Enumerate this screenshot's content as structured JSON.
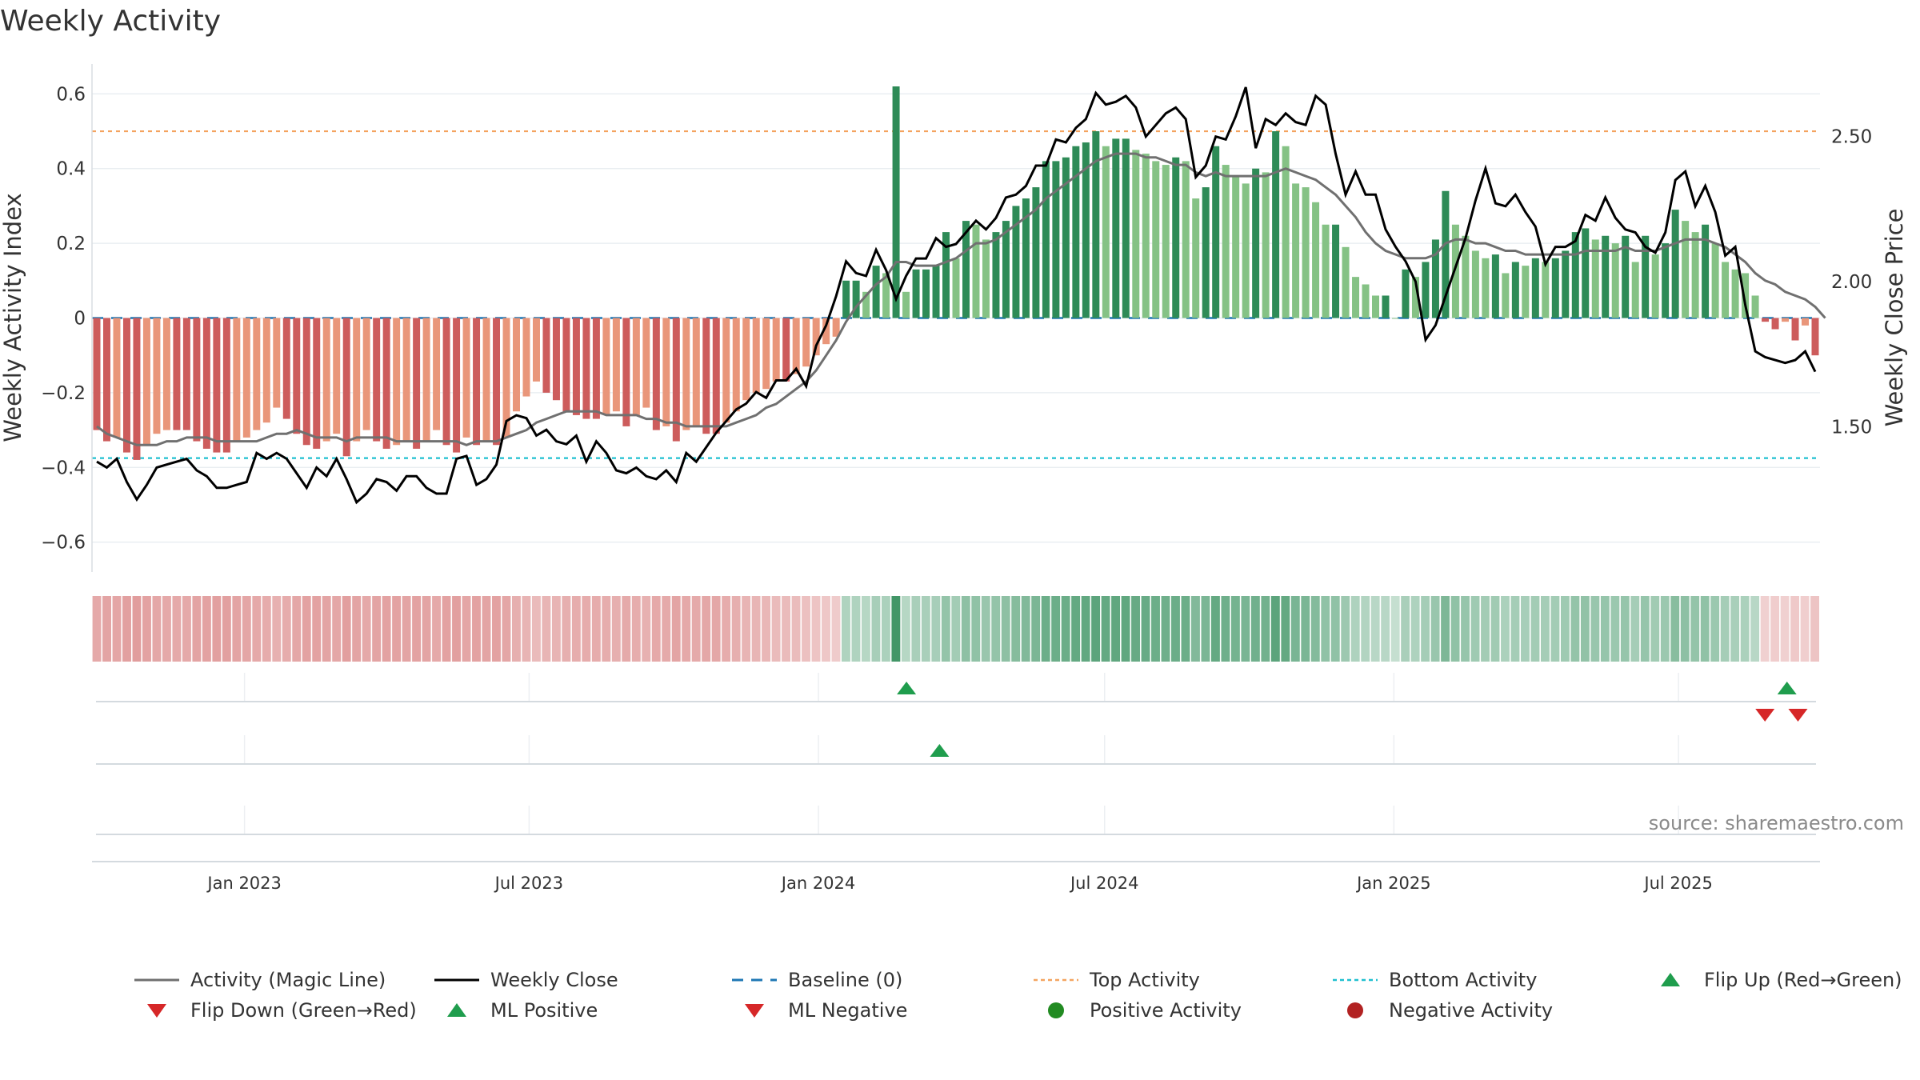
{
  "title": "Weekly Activity",
  "source": "source: sharemaestro.com",
  "colors": {
    "pos_dark": "#2e8b57",
    "pos_light": "#85c285",
    "neg_dark": "#cd5c5c",
    "neg_light": "#e9967a",
    "magic_line": "#707070",
    "close_line": "#000000",
    "baseline": "#1f77b4",
    "top": "#f4a460",
    "bottom": "#20c0d0",
    "flip_up": "#1f9d4d",
    "flip_down": "#d62728",
    "pos_dot": "#228b22",
    "neg_dot": "#b22222"
  },
  "chart_data": {
    "type": "bar",
    "title": "Weekly Activity",
    "ylabel_left": "Weekly Activity Index",
    "ylabel_right": "Weekly Close Price",
    "ylim_left": [
      -0.68,
      0.68
    ],
    "ylim_right": [
      1.0,
      2.75
    ],
    "yticks_left": [
      {
        "v": 0.6,
        "label": "0.6"
      },
      {
        "v": 0.4,
        "label": "0.4"
      },
      {
        "v": 0.2,
        "label": "0.2"
      },
      {
        "v": 0,
        "label": "0"
      },
      {
        "v": -0.2,
        "label": "−0.2"
      },
      {
        "v": -0.4,
        "label": "−0.4"
      },
      {
        "v": -0.6,
        "label": "−0.6"
      }
    ],
    "yticks_right": [
      {
        "v": 2.5,
        "label": "2.50"
      },
      {
        "v": 2.0,
        "label": "2.00"
      },
      {
        "v": 1.5,
        "label": "1.50"
      }
    ],
    "x_start": "2022-09-26",
    "x_end": "2025-09-29",
    "xticks": [
      {
        "date": "2023-01-01",
        "label": "Jan 2023"
      },
      {
        "date": "2023-07-01",
        "label": "Jul 2023"
      },
      {
        "date": "2024-01-01",
        "label": "Jan 2024"
      },
      {
        "date": "2024-07-01",
        "label": "Jul 2024"
      },
      {
        "date": "2025-01-01",
        "label": "Jan 2025"
      },
      {
        "date": "2025-07-01",
        "label": "Jul 2025"
      }
    ],
    "reference_lines": {
      "baseline": 0,
      "top_activity": 0.5,
      "bottom_activity": -0.375
    },
    "series": [
      {
        "name": "Weekly Activity Index",
        "type": "bar",
        "values": [
          -0.3,
          -0.33,
          -0.32,
          -0.36,
          -0.38,
          -0.34,
          -0.31,
          -0.3,
          -0.3,
          -0.3,
          -0.33,
          -0.35,
          -0.36,
          -0.36,
          -0.33,
          -0.32,
          -0.3,
          -0.28,
          -0.24,
          -0.27,
          -0.31,
          -0.34,
          -0.35,
          -0.33,
          -0.31,
          -0.37,
          -0.33,
          -0.3,
          -0.33,
          -0.35,
          -0.34,
          -0.33,
          -0.35,
          -0.33,
          -0.3,
          -0.34,
          -0.36,
          -0.32,
          -0.34,
          -0.33,
          -0.34,
          -0.32,
          -0.25,
          -0.21,
          -0.17,
          -0.2,
          -0.22,
          -0.25,
          -0.26,
          -0.27,
          -0.27,
          -0.26,
          -0.25,
          -0.29,
          -0.26,
          -0.24,
          -0.3,
          -0.29,
          -0.33,
          -0.3,
          -0.29,
          -0.31,
          -0.31,
          -0.28,
          -0.25,
          -0.22,
          -0.2,
          -0.19,
          -0.17,
          -0.17,
          -0.15,
          -0.13,
          -0.1,
          -0.07,
          -0.05,
          0.1,
          0.1,
          0.07,
          0.14,
          0.12,
          0.62,
          0.07,
          0.13,
          0.13,
          0.14,
          0.23,
          0.16,
          0.26,
          0.25,
          0.21,
          0.23,
          0.26,
          0.3,
          0.32,
          0.35,
          0.42,
          0.42,
          0.43,
          0.46,
          0.47,
          0.5,
          0.46,
          0.48,
          0.48,
          0.45,
          0.44,
          0.42,
          0.41,
          0.43,
          0.42,
          0.32,
          0.35,
          0.46,
          0.41,
          0.38,
          0.36,
          0.4,
          0.39,
          0.5,
          0.46,
          0.36,
          0.35,
          0.31,
          0.25,
          0.25,
          0.19,
          0.11,
          0.09,
          0.06,
          0.06,
          0.0,
          0.13,
          0.11,
          0.15,
          0.21,
          0.34,
          0.25,
          0.22,
          0.18,
          0.16,
          0.17,
          0.12,
          0.15,
          0.14,
          0.16,
          0.15,
          0.16,
          0.18,
          0.23,
          0.24,
          0.21,
          0.22,
          0.2,
          0.22,
          0.15,
          0.22,
          0.17,
          0.2,
          0.29,
          0.26,
          0.23,
          0.25,
          0.2,
          0.15,
          0.13,
          0.12,
          0.06,
          -0.01,
          -0.03,
          -0.01,
          -0.06,
          -0.02,
          -0.1
        ]
      },
      {
        "name": "Activity (Magic Line)",
        "type": "line",
        "values": [
          -0.29,
          -0.31,
          -0.32,
          -0.33,
          -0.34,
          -0.34,
          -0.34,
          -0.33,
          -0.33,
          -0.32,
          -0.32,
          -0.32,
          -0.33,
          -0.33,
          -0.33,
          -0.33,
          -0.33,
          -0.32,
          -0.31,
          -0.31,
          -0.3,
          -0.31,
          -0.32,
          -0.32,
          -0.32,
          -0.33,
          -0.32,
          -0.32,
          -0.32,
          -0.32,
          -0.33,
          -0.33,
          -0.33,
          -0.33,
          -0.33,
          -0.33,
          -0.33,
          -0.34,
          -0.33,
          -0.33,
          -0.33,
          -0.32,
          -0.31,
          -0.3,
          -0.28,
          -0.27,
          -0.26,
          -0.25,
          -0.25,
          -0.25,
          -0.25,
          -0.26,
          -0.26,
          -0.26,
          -0.26,
          -0.27,
          -0.27,
          -0.28,
          -0.28,
          -0.29,
          -0.29,
          -0.29,
          -0.29,
          -0.29,
          -0.28,
          -0.27,
          -0.26,
          -0.24,
          -0.23,
          -0.21,
          -0.19,
          -0.17,
          -0.14,
          -0.1,
          -0.06,
          -0.01,
          0.03,
          0.06,
          0.09,
          0.11,
          0.15,
          0.15,
          0.14,
          0.14,
          0.14,
          0.15,
          0.16,
          0.18,
          0.2,
          0.2,
          0.21,
          0.23,
          0.25,
          0.27,
          0.29,
          0.32,
          0.34,
          0.36,
          0.38,
          0.4,
          0.42,
          0.43,
          0.44,
          0.44,
          0.44,
          0.43,
          0.43,
          0.42,
          0.41,
          0.41,
          0.39,
          0.38,
          0.39,
          0.38,
          0.38,
          0.38,
          0.38,
          0.38,
          0.39,
          0.4,
          0.39,
          0.38,
          0.37,
          0.35,
          0.33,
          0.3,
          0.27,
          0.23,
          0.2,
          0.18,
          0.17,
          0.16,
          0.16,
          0.16,
          0.17,
          0.2,
          0.21,
          0.21,
          0.2,
          0.2,
          0.19,
          0.18,
          0.18,
          0.17,
          0.17,
          0.17,
          0.17,
          0.17,
          0.17,
          0.18,
          0.18,
          0.18,
          0.18,
          0.19,
          0.18,
          0.18,
          0.18,
          0.19,
          0.2,
          0.21,
          0.21,
          0.21,
          0.2,
          0.19,
          0.17,
          0.15,
          0.12,
          0.1,
          0.09,
          0.07,
          0.06,
          0.05,
          0.03,
          0.0
        ]
      },
      {
        "name": "Weekly Close",
        "type": "line",
        "axis": "right",
        "values": [
          1.38,
          1.36,
          1.39,
          1.31,
          1.25,
          1.3,
          1.36,
          1.37,
          1.38,
          1.39,
          1.35,
          1.33,
          1.29,
          1.29,
          1.3,
          1.31,
          1.41,
          1.39,
          1.41,
          1.39,
          1.34,
          1.29,
          1.36,
          1.33,
          1.39,
          1.32,
          1.24,
          1.27,
          1.32,
          1.31,
          1.28,
          1.33,
          1.33,
          1.29,
          1.27,
          1.27,
          1.39,
          1.4,
          1.3,
          1.32,
          1.37,
          1.52,
          1.54,
          1.53,
          1.47,
          1.49,
          1.45,
          1.44,
          1.47,
          1.38,
          1.45,
          1.41,
          1.35,
          1.34,
          1.36,
          1.33,
          1.32,
          1.35,
          1.31,
          1.41,
          1.38,
          1.43,
          1.48,
          1.52,
          1.56,
          1.58,
          1.62,
          1.6,
          1.66,
          1.66,
          1.7,
          1.64,
          1.78,
          1.85,
          1.95,
          2.07,
          2.03,
          2.02,
          2.11,
          2.04,
          1.94,
          2.02,
          2.08,
          2.08,
          2.15,
          2.12,
          2.13,
          2.17,
          2.21,
          2.18,
          2.22,
          2.29,
          2.3,
          2.33,
          2.4,
          2.4,
          2.49,
          2.48,
          2.53,
          2.56,
          2.65,
          2.61,
          2.62,
          2.64,
          2.6,
          2.5,
          2.54,
          2.58,
          2.6,
          2.56,
          2.36,
          2.4,
          2.5,
          2.49,
          2.57,
          2.67,
          2.46,
          2.56,
          2.54,
          2.58,
          2.55,
          2.54,
          2.64,
          2.61,
          2.44,
          2.3,
          2.38,
          2.3,
          2.3,
          2.18,
          2.12,
          2.07,
          2.0,
          1.8,
          1.85,
          1.95,
          2.05,
          2.15,
          2.28,
          2.39,
          2.27,
          2.26,
          2.3,
          2.24,
          2.19,
          2.06,
          2.12,
          2.12,
          2.14,
          2.23,
          2.21,
          2.29,
          2.22,
          2.18,
          2.17,
          2.12,
          2.1,
          2.17,
          2.35,
          2.38,
          2.26,
          2.33,
          2.24,
          2.09,
          2.12,
          1.92,
          1.76,
          1.74,
          1.73,
          1.72,
          1.73,
          1.76,
          1.69
        ]
      }
    ],
    "signal_rows": [
      {
        "row": 1,
        "up": [
          "2024-02-26",
          "2025-09-08"
        ],
        "down": [
          "2025-08-25",
          "2025-09-15"
        ]
      },
      {
        "row": 2,
        "up": [
          "2024-03-18"
        ],
        "down": []
      },
      {
        "row": 3,
        "up": [],
        "down": []
      }
    ],
    "legend": [
      {
        "key": "magic",
        "label": "Activity (Magic Line)",
        "symbol": "line-solid",
        "color": "#707070"
      },
      {
        "key": "close",
        "label": "Weekly Close",
        "symbol": "line-solid",
        "color": "#000000"
      },
      {
        "key": "baseline",
        "label": "Baseline (0)",
        "symbol": "line-dashed",
        "color": "#1f77b4"
      },
      {
        "key": "top",
        "label": "Top Activity",
        "symbol": "line-dotted",
        "color": "#f4a460"
      },
      {
        "key": "bottom",
        "label": "Bottom Activity",
        "symbol": "line-dotted",
        "color": "#20c0d0"
      },
      {
        "key": "flipup",
        "label": "Flip Up (Red→Green)",
        "symbol": "tri-up",
        "color": "#1f9d4d"
      },
      {
        "key": "flipdown",
        "label": "Flip Down (Green→Red)",
        "symbol": "tri-down",
        "color": "#d62728"
      },
      {
        "key": "mlpos",
        "label": "ML Positive",
        "symbol": "tri-up",
        "color": "#1f9d4d"
      },
      {
        "key": "mlneg",
        "label": "ML Negative",
        "symbol": "tri-down",
        "color": "#d62728"
      },
      {
        "key": "posact",
        "label": "Positive Activity",
        "symbol": "dot",
        "color": "#228b22"
      },
      {
        "key": "negact",
        "label": "Negative Activity",
        "symbol": "dot",
        "color": "#b22222"
      }
    ]
  }
}
